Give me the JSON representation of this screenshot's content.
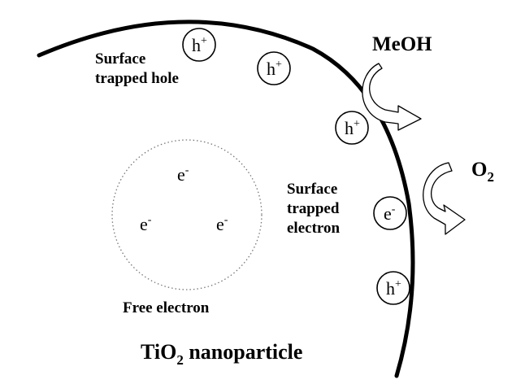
{
  "labels": {
    "surface_hole_line1": "Surface",
    "surface_hole_line2": "trapped hole",
    "meoh": "MeOH",
    "o2_base": "O",
    "o2_sub": "2",
    "surface_electron_line1": "Surface",
    "surface_electron_line2": "trapped",
    "surface_electron_line3": "electron",
    "free_electron": "Free electron",
    "nanoparticle_base": "TiO",
    "nanoparticle_sub": "2",
    "nanoparticle_rest": " nanoparticle"
  },
  "holes": [
    {
      "base": "h",
      "sup": "+"
    },
    {
      "base": "h",
      "sup": "+"
    },
    {
      "base": "h",
      "sup": "+"
    },
    {
      "base": "h",
      "sup": "+"
    }
  ],
  "surface_electron": {
    "base": "e",
    "sup": "-"
  },
  "free_electrons": [
    {
      "base": "e",
      "sup": "-"
    },
    {
      "base": "e",
      "sup": "-"
    },
    {
      "base": "e",
      "sup": "-"
    }
  ]
}
